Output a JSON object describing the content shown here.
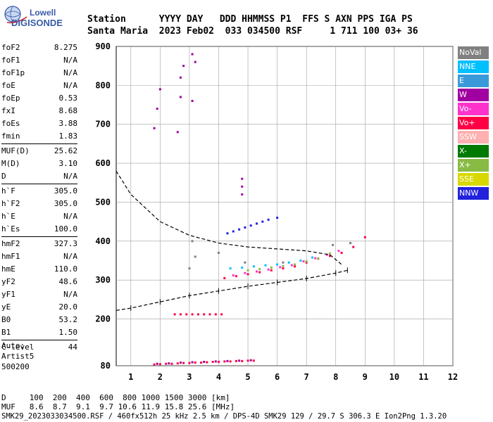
{
  "logo": {
    "top": "Lowell",
    "bottom": "DIGISONDE"
  },
  "header": {
    "line1": "Station      YYYY DAY   DDD HHMMSS P1  FFS S AXN PPS IGA PS",
    "line2": "Santa Maria  2023 Feb02  033 034500 RSF     1 711 100 03+ 36"
  },
  "params": [
    [
      {
        "label": "foF2",
        "value": "8.275"
      },
      {
        "label": "foF1",
        "value": "N/A"
      },
      {
        "label": "foF1p",
        "value": "N/A"
      },
      {
        "label": "foE",
        "value": "N/A"
      },
      {
        "label": "foEp",
        "value": "0.53"
      },
      {
        "label": "fxI",
        "value": "8.68"
      },
      {
        "label": "foEs",
        "value": "3.88"
      },
      {
        "label": "fmin",
        "value": "1.83"
      }
    ],
    [
      {
        "label": "MUF(D)",
        "value": "25.62"
      },
      {
        "label": "M(D)",
        "value": "3.10"
      },
      {
        "label": "D",
        "value": "N/A"
      }
    ],
    [
      {
        "label": "h`F",
        "value": "305.0"
      },
      {
        "label": "h`F2",
        "value": "305.0"
      },
      {
        "label": "h`E",
        "value": "N/A"
      },
      {
        "label": "h`Es",
        "value": "100.0"
      }
    ],
    [
      {
        "label": "hmF2",
        "value": "327.3"
      },
      {
        "label": "hmF1",
        "value": "N/A"
      },
      {
        "label": "hmE",
        "value": "110.0"
      },
      {
        "label": "yF2",
        "value": "48.6"
      },
      {
        "label": "yF1",
        "value": "N/A"
      },
      {
        "label": "yE",
        "value": "20.0"
      },
      {
        "label": "B0",
        "value": "53.2"
      },
      {
        "label": "B1",
        "value": "1.50"
      }
    ],
    [
      {
        "label": "C-level",
        "value": "44"
      }
    ]
  ],
  "auto": {
    "line1": "Auto:",
    "line2": "Artist5",
    "line3": "500200"
  },
  "legend": [
    {
      "label": "NoVal",
      "color": "#808080"
    },
    {
      "label": "NNE",
      "color": "#00bfff"
    },
    {
      "label": "E",
      "color": "#3a9ad9"
    },
    {
      "label": "W",
      "color": "#a000a0"
    },
    {
      "label": "Vo-",
      "color": "#ff33cc"
    },
    {
      "label": "Vo+",
      "color": "#ff0044"
    },
    {
      "label": "SSW",
      "color": "#ffb0b0"
    },
    {
      "label": "X-",
      "color": "#007a00"
    },
    {
      "label": "X+",
      "color": "#88bb44"
    },
    {
      "label": "SSE",
      "color": "#d8d800"
    },
    {
      "label": "NNW",
      "color": "#2222dd"
    }
  ],
  "bottom": {
    "line1": "D     100  200  400  600  800 1000 1500 3000 [km]",
    "line2": "MUF   8.6  8.7  9.1  9.7 10.6 11.9 15.8 25.6 [MHz]",
    "line3": "SMK29_2023033034500.RSF / 460fx512h 25 kHz 2.5 km / DPS-4D SMK29 129 / 29.7 S 306.3 E Ion2Png 1.3.20"
  },
  "chart_data": {
    "type": "scatter",
    "xlim": [
      0.5,
      12
    ],
    "ylim": [
      80,
      900
    ],
    "xticks": [
      "1",
      "2",
      "3",
      "4",
      "5",
      "6",
      "7",
      "8",
      "9",
      "10",
      "11",
      "12"
    ],
    "yticks": [
      "80",
      "200",
      "300",
      "400",
      "500",
      "600",
      "700",
      "800",
      "900"
    ],
    "grid": true,
    "series": [
      {
        "kind": "points",
        "color": "#ff0044",
        "x": [
          1.8,
          2.0,
          2.2,
          2.4,
          2.6,
          2.8,
          3.0,
          3.2,
          3.4,
          3.6,
          3.8,
          4.0,
          4.2,
          4.4,
          4.6,
          4.8,
          5.0,
          5.2
        ],
        "y": [
          83,
          84,
          85,
          85,
          86,
          87,
          87,
          88,
          88,
          89,
          90,
          90,
          91,
          91,
          92,
          92,
          93,
          93
        ]
      },
      {
        "kind": "points",
        "color": "#a000a0",
        "x": [
          1.9,
          2.3,
          2.7,
          3.1,
          3.5,
          3.9,
          4.3,
          4.7,
          5.1
        ],
        "y": [
          85,
          86,
          88,
          89,
          90,
          91,
          92,
          93,
          94
        ]
      },
      {
        "kind": "points",
        "color": "#ff0044",
        "x": [
          2.5,
          2.7,
          2.9,
          3.1,
          3.3,
          3.5,
          3.7,
          3.9,
          4.1
        ],
        "y": [
          212,
          212,
          212,
          212,
          212,
          212,
          212,
          212,
          212
        ]
      },
      {
        "kind": "points",
        "color": "#ff0044",
        "x": [
          4.2,
          4.6,
          5.0,
          5.4,
          5.8,
          6.2,
          6.6,
          7.0,
          7.4,
          7.8,
          8.2,
          8.6,
          9.0
        ],
        "y": [
          305,
          310,
          315,
          320,
          325,
          330,
          335,
          345,
          355,
          362,
          370,
          385,
          410
        ]
      },
      {
        "kind": "points",
        "color": "#ff33cc",
        "x": [
          4.5,
          4.9,
          5.3,
          5.7,
          6.1,
          6.5,
          6.9,
          7.3,
          7.7,
          8.1,
          8.5
        ],
        "y": [
          312,
          318,
          322,
          327,
          333,
          338,
          348,
          356,
          365,
          375,
          395
        ]
      },
      {
        "kind": "points",
        "color": "#00bfff",
        "x": [
          4.4,
          4.8,
          5.2,
          5.6,
          6.0,
          6.4,
          6.8,
          7.2
        ],
        "y": [
          330,
          332,
          335,
          338,
          340,
          345,
          350,
          358
        ]
      },
      {
        "kind": "points",
        "color": "#88bb44",
        "x": [
          5.0,
          5.4,
          5.8,
          6.2,
          6.6,
          7.0,
          7.4,
          7.8
        ],
        "y": [
          325,
          328,
          332,
          336,
          340,
          348,
          355,
          368
        ]
      },
      {
        "kind": "points",
        "color": "#2222dd",
        "x": [
          4.3,
          4.5,
          4.7,
          4.9,
          5.1,
          5.3,
          5.5,
          5.7,
          6.0
        ],
        "y": [
          420,
          425,
          430,
          435,
          440,
          445,
          450,
          455,
          460
        ]
      },
      {
        "kind": "points",
        "color": "#a000a0",
        "x": [
          1.8,
          1.9,
          2.0,
          2.6,
          2.7,
          2.7,
          2.8,
          3.1,
          3.1,
          3.2,
          4.8,
          4.8,
          4.8
        ],
        "y": [
          690,
          740,
          790,
          680,
          770,
          820,
          850,
          760,
          880,
          860,
          540,
          560,
          520
        ]
      },
      {
        "kind": "points",
        "color": "#808080",
        "x": [
          3.0,
          3.1,
          3.2,
          4.0,
          4.9,
          6.2,
          7.9,
          8.5
        ],
        "y": [
          330,
          400,
          360,
          370,
          345,
          345,
          390,
          395
        ]
      },
      {
        "kind": "virtual_height",
        "color": "#000000",
        "x": [
          0.5,
          1.0,
          2.0,
          3.0,
          4.0,
          5.0,
          6.0,
          7.0,
          8.0,
          8.4
        ],
        "y": [
          222,
          228,
          244,
          260,
          272,
          284,
          294,
          304,
          318,
          325
        ]
      },
      {
        "kind": "profile",
        "color": "#000000",
        "x": [
          0.5,
          1.0,
          2.0,
          3.0,
          4.0,
          5.0,
          6.0,
          7.0,
          7.8,
          8.2
        ],
        "y": [
          580,
          520,
          450,
          415,
          395,
          385,
          380,
          375,
          365,
          340
        ]
      }
    ]
  }
}
